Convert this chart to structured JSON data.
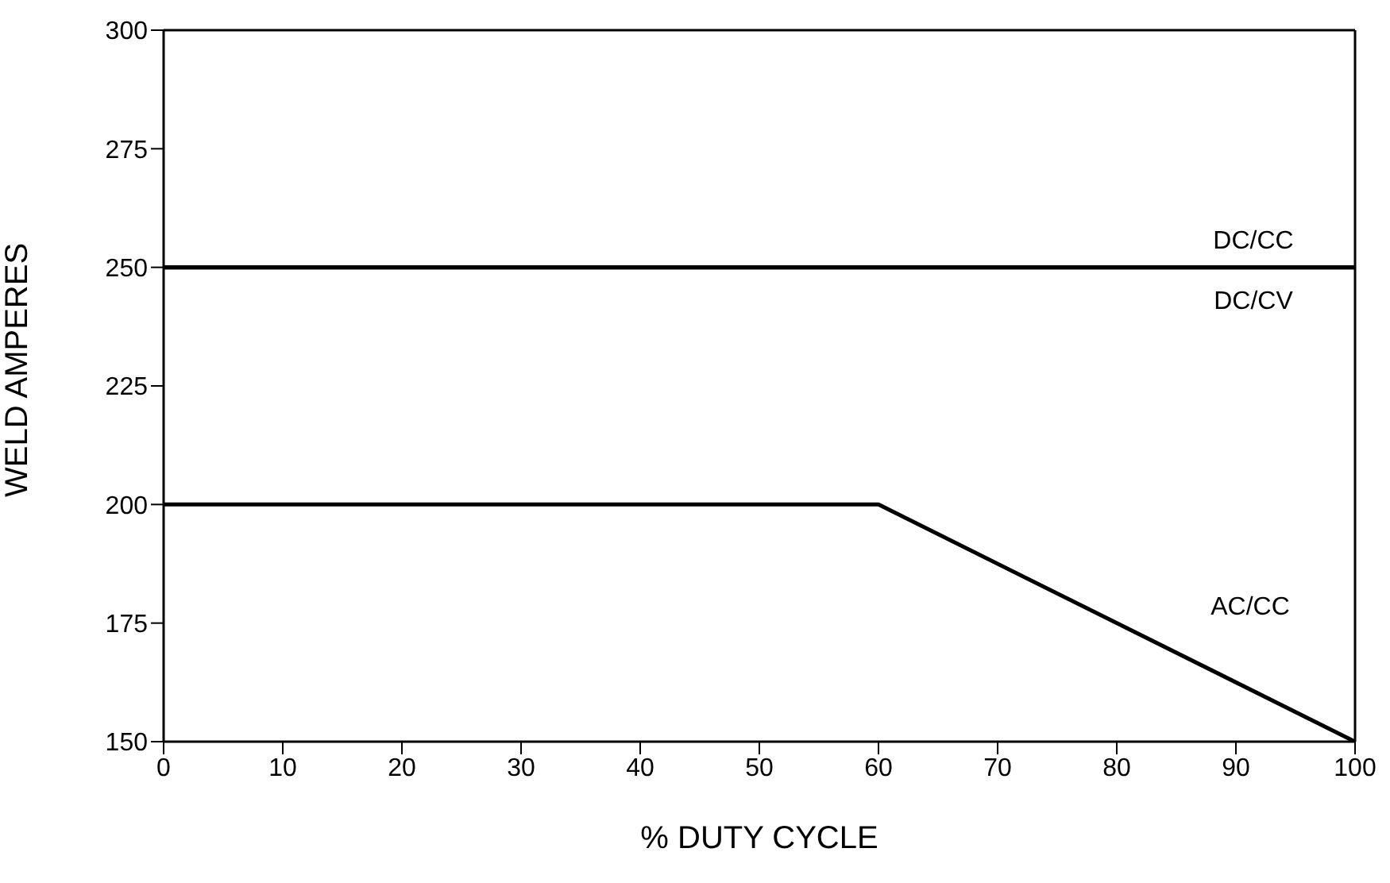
{
  "chart_data": {
    "type": "line",
    "xlabel": "% DUTY CYCLE",
    "ylabel": "WELD AMPERES",
    "xlim": [
      0,
      100
    ],
    "xticks": [
      0,
      10,
      20,
      30,
      40,
      50,
      60,
      70,
      80,
      90,
      100
    ],
    "ylim": [
      150,
      300
    ],
    "yticks": [
      150,
      175,
      200,
      225,
      250,
      275,
      300
    ],
    "grid": false,
    "legend": false,
    "marker": "none",
    "line_style": "solid",
    "series": [
      {
        "name": "DC/CC",
        "color": "#000000",
        "x": [
          0,
          100
        ],
        "values": [
          250,
          250
        ]
      },
      {
        "name": "DC/CV",
        "color": "#000000",
        "x": [
          0,
          100
        ],
        "values": [
          250,
          250
        ]
      },
      {
        "name": "AC/CC",
        "color": "#000000",
        "x": [
          0,
          60,
          100
        ],
        "values": [
          200,
          200,
          150
        ]
      }
    ]
  }
}
